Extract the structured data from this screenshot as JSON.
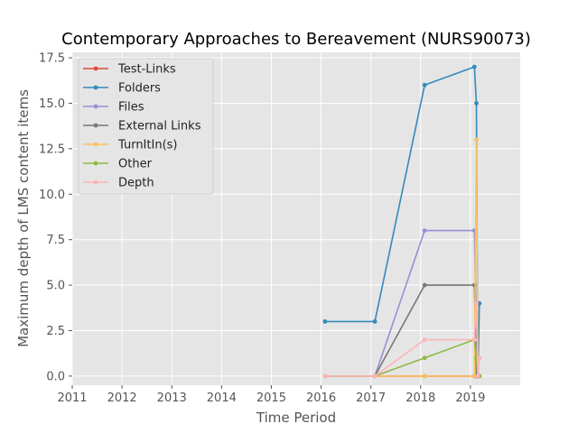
{
  "chart_data": {
    "type": "line",
    "title": "Contemporary Approaches to Bereavement (NURS90073)",
    "xlabel": "Time Period",
    "ylabel": "Maximum depth of LMS content items",
    "xlim": [
      2011,
      2020.0
    ],
    "ylim": [
      -0.5,
      17.8
    ],
    "xticks": [
      2011,
      2012,
      2013,
      2014,
      2015,
      2016,
      2017,
      2018,
      2019
    ],
    "yticks": [
      0.0,
      2.5,
      5.0,
      7.5,
      10.0,
      12.5,
      15.0,
      17.5
    ],
    "ytick_labels": [
      "0.0",
      "2.5",
      "5.0",
      "7.5",
      "10.0",
      "12.5",
      "15.0",
      "17.5"
    ],
    "grid": true,
    "legend_position": "top-left",
    "series": [
      {
        "name": "Test-Links",
        "color": "#e24a33",
        "points": [
          [
            2016.08,
            0
          ],
          [
            2017.08,
            0
          ],
          [
            2018.08,
            0
          ],
          [
            2019.08,
            0
          ],
          [
            2019.12,
            0
          ],
          [
            2019.15,
            0
          ],
          [
            2019.18,
            0
          ]
        ]
      },
      {
        "name": "Folders",
        "color": "#348abd",
        "points": [
          [
            2016.08,
            3
          ],
          [
            2017.08,
            3
          ],
          [
            2018.08,
            16
          ],
          [
            2019.08,
            17
          ],
          [
            2019.12,
            15
          ],
          [
            2019.15,
            0
          ],
          [
            2019.18,
            4
          ]
        ]
      },
      {
        "name": "Files",
        "color": "#988ed5",
        "points": [
          [
            2016.08,
            0
          ],
          [
            2017.08,
            0
          ],
          [
            2018.08,
            8
          ],
          [
            2019.08,
            8
          ],
          [
            2019.12,
            2
          ],
          [
            2019.15,
            0
          ],
          [
            2019.18,
            1
          ]
        ]
      },
      {
        "name": "External Links",
        "color": "#777777",
        "points": [
          [
            2016.08,
            0
          ],
          [
            2017.08,
            0
          ],
          [
            2018.08,
            5
          ],
          [
            2019.08,
            5
          ],
          [
            2019.12,
            0
          ],
          [
            2019.15,
            0
          ],
          [
            2019.18,
            0
          ]
        ]
      },
      {
        "name": "TurnItIn(s)",
        "color": "#fbc15e",
        "points": [
          [
            2016.08,
            0
          ],
          [
            2017.08,
            0
          ],
          [
            2018.08,
            0
          ],
          [
            2019.08,
            0
          ],
          [
            2019.12,
            13
          ],
          [
            2019.15,
            0
          ],
          [
            2019.18,
            0
          ]
        ]
      },
      {
        "name": "Other",
        "color": "#8eba42",
        "points": [
          [
            2016.08,
            0
          ],
          [
            2017.08,
            0
          ],
          [
            2018.08,
            1
          ],
          [
            2019.08,
            2
          ],
          [
            2019.12,
            1
          ],
          [
            2019.15,
            0
          ],
          [
            2019.18,
            0
          ]
        ]
      },
      {
        "name": "Depth",
        "color": "#ffb5b8",
        "points": [
          [
            2016.08,
            0
          ],
          [
            2017.08,
            0
          ],
          [
            2018.08,
            2
          ],
          [
            2019.08,
            2
          ],
          [
            2019.12,
            4
          ],
          [
            2019.15,
            0
          ],
          [
            2019.18,
            1
          ]
        ]
      }
    ]
  }
}
